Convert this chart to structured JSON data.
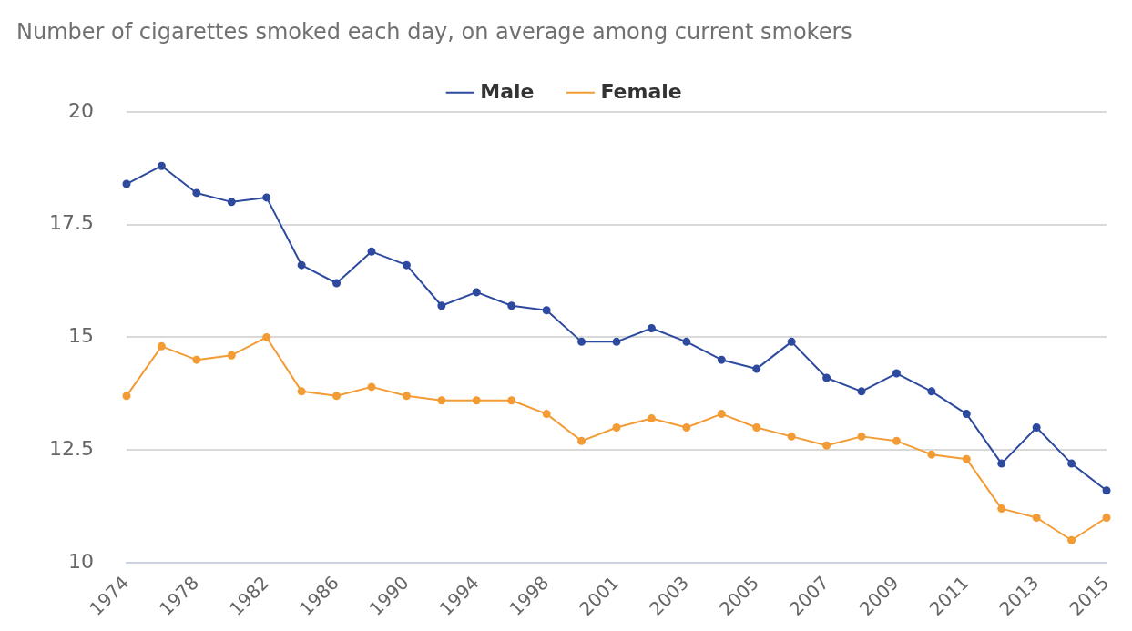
{
  "chart_data": {
    "type": "line",
    "title": "Number of cigarettes smoked each day, on average among current smokers",
    "categories": [
      "1974",
      null,
      "1978",
      null,
      "1982",
      null,
      "1986",
      null,
      "1990",
      null,
      "1994",
      null,
      "1998",
      null,
      "2001",
      null,
      "2003",
      null,
      "2005",
      null,
      "2007",
      null,
      "2009",
      null,
      "2011",
      null,
      "2013",
      null,
      "2015"
    ],
    "series": [
      {
        "name": "Male",
        "color": "#2e4a9e",
        "values": [
          18.4,
          18.8,
          18.2,
          18.0,
          18.1,
          16.6,
          16.2,
          16.9,
          16.6,
          15.7,
          16.0,
          15.7,
          15.6,
          14.9,
          14.9,
          15.2,
          14.9,
          14.5,
          14.3,
          14.9,
          14.1,
          13.8,
          14.2,
          13.8,
          13.3,
          12.2,
          13.0,
          12.2,
          11.6
        ]
      },
      {
        "name": "Female",
        "color": "#f39b34",
        "values": [
          13.7,
          14.8,
          14.5,
          14.6,
          15.0,
          13.8,
          13.7,
          13.9,
          13.7,
          13.6,
          13.6,
          13.6,
          13.3,
          12.7,
          13.0,
          13.2,
          13.0,
          13.3,
          13.0,
          12.8,
          12.6,
          12.8,
          12.7,
          12.4,
          12.3,
          11.2,
          11.0,
          10.5,
          11.0
        ]
      }
    ],
    "ylim": [
      10,
      20
    ],
    "yticks": [
      10,
      12.5,
      15,
      17.5,
      20
    ],
    "grid": "y",
    "legend": "top",
    "marker": "circle",
    "line_style": "solid"
  }
}
